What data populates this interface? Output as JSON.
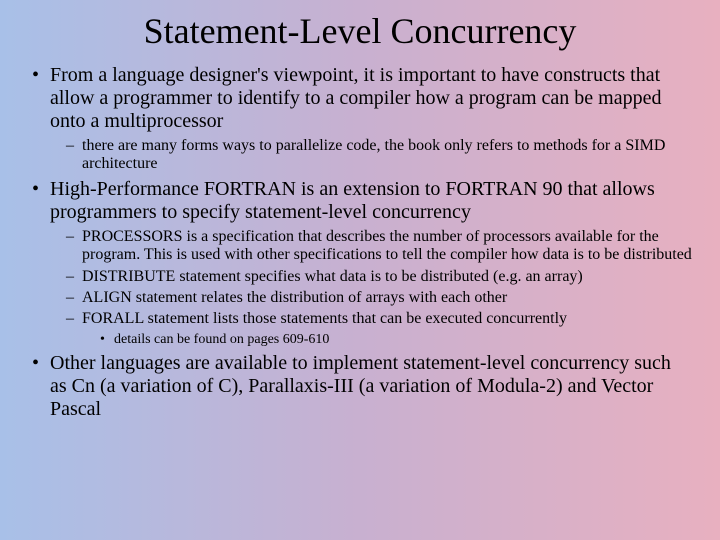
{
  "background": {
    "gradient_left": "#a8c0e8",
    "gradient_mid": "#c8b0d0",
    "gradient_right": "#e8b0c0"
  },
  "title": {
    "text": "Statement-Level Concurrency",
    "fontsize": 36,
    "align": "center"
  },
  "bullets": [
    {
      "text": "From a language designer's viewpoint, it is important to have constructs that allow a programmer to identify to a compiler how a program can be mapped onto a multiprocessor",
      "sub": [
        {
          "text": "there are many forms ways to parallelize code, the book only refers to methods for a SIMD architecture"
        }
      ]
    },
    {
      "text": "High-Performance FORTRAN is an extension to FORTRAN 90 that allows programmers to specify statement-level concurrency",
      "sub": [
        {
          "text": "PROCESSORS is a specification that describes the number of processors available for the program.  This is used with other specifications to tell the compiler how data is to be distributed"
        },
        {
          "text": "DISTRIBUTE statement specifies what data is to be distributed (e.g. an array)"
        },
        {
          "text": "ALIGN statement relates the distribution of arrays with each other"
        },
        {
          "text": "FORALL statement lists those statements that can be executed concurrently",
          "subsub": [
            {
              "text": "details can be found on pages 609-610"
            }
          ]
        }
      ]
    },
    {
      "text": "Other languages are available to implement statement-level concurrency such as Cn (a variation of C), Parallaxis-III (a variation of Modula-2) and Vector Pascal"
    }
  ],
  "fonts": {
    "family": "Times New Roman",
    "lvl1_size": 20,
    "lvl2_size": 16,
    "lvl3_size": 14
  }
}
